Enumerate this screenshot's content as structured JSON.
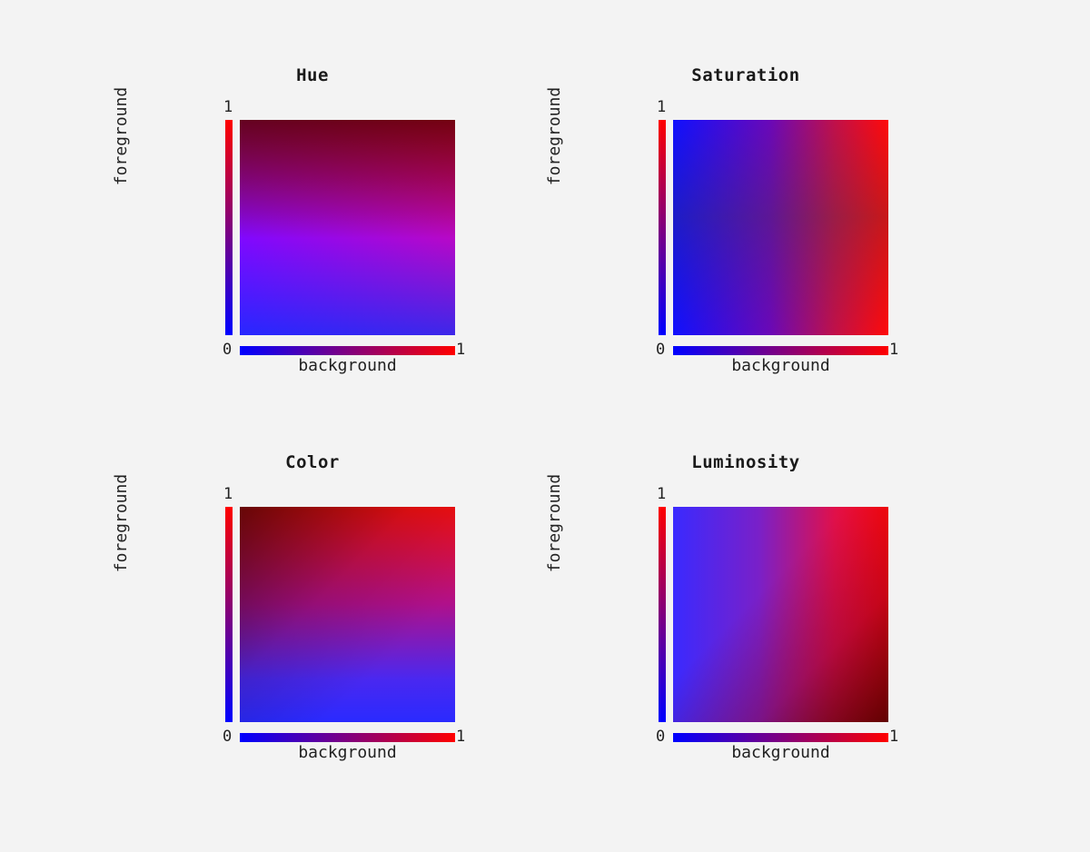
{
  "panels": [
    {
      "title": "Hue",
      "xlabel": "background",
      "ylabel": "foreground",
      "tick_max": "1",
      "tick_min": "0"
    },
    {
      "title": "Saturation",
      "xlabel": "background",
      "ylabel": "foreground",
      "tick_max": "1",
      "tick_min": "0"
    },
    {
      "title": "Color",
      "xlabel": "background",
      "ylabel": "foreground",
      "tick_max": "1",
      "tick_min": "0"
    },
    {
      "title": "Luminosity",
      "xlabel": "background",
      "ylabel": "foreground",
      "tick_max": "1",
      "tick_min": "0"
    }
  ],
  "colors": {
    "background_start": "#0000ff",
    "background_end": "#ff0000",
    "foreground_start": "#0000ff",
    "foreground_end": "#ff0000",
    "page": "#f3f3f3"
  }
}
